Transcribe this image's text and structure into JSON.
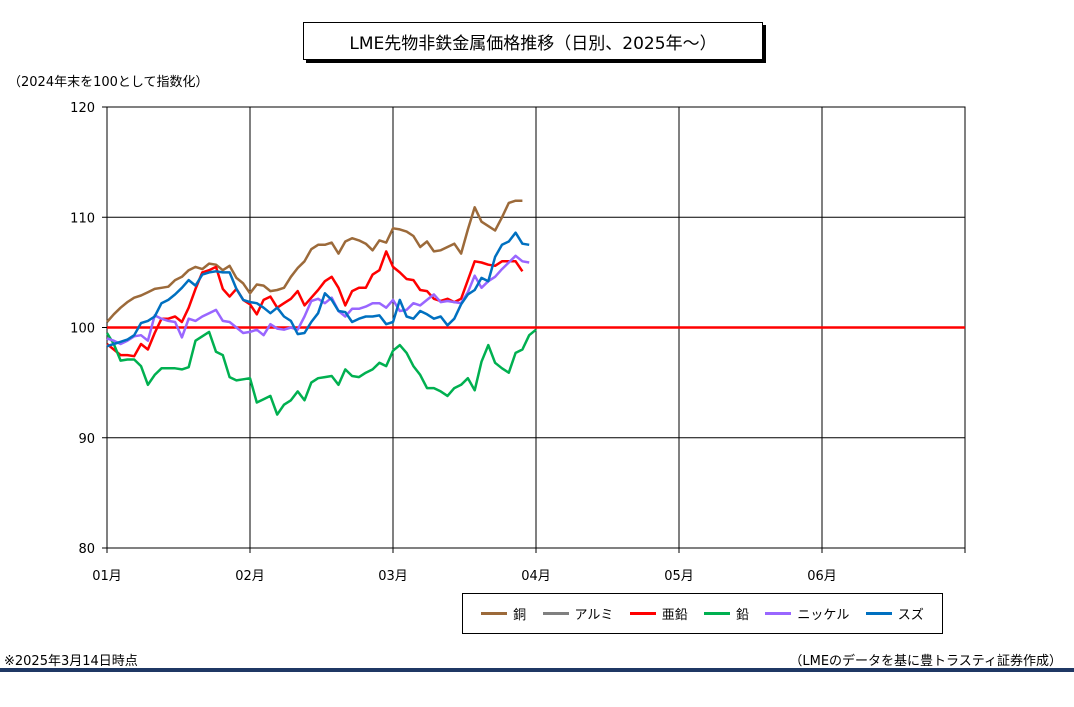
{
  "chart_data": {
    "type": "line",
    "title": "LME先物非鉄金属価格推移（日別、2025年～）",
    "ylabel": "（2024年末を100として指数化）",
    "xlabel": "",
    "ylim": [
      80,
      120
    ],
    "yticks": [
      80,
      90,
      100,
      110,
      120
    ],
    "x_categories": [
      "01月",
      "02月",
      "03月",
      "04月",
      "05月",
      "06月"
    ],
    "grid": true,
    "legend_position": "bottom",
    "reference_line": {
      "value": 100,
      "color": "#ff0000"
    },
    "series": [
      {
        "name": "銅",
        "color": "#9c6a3a",
        "points": [
          [
            0,
            100.5
          ],
          [
            1,
            101.2
          ],
          [
            2,
            101.8
          ],
          [
            3,
            102.3
          ],
          [
            4,
            102.7
          ],
          [
            5,
            102.9
          ],
          [
            6,
            103.2
          ],
          [
            7,
            103.5
          ],
          [
            8,
            103.6
          ],
          [
            9,
            103.7
          ],
          [
            10,
            104.3
          ],
          [
            11,
            104.6
          ],
          [
            12,
            105.2
          ],
          [
            13,
            105.5
          ],
          [
            14,
            105.3
          ],
          [
            15,
            105.8
          ],
          [
            16,
            105.7
          ],
          [
            17,
            105.2
          ],
          [
            18,
            105.6
          ],
          [
            19,
            104.5
          ],
          [
            20,
            104.0
          ],
          [
            21,
            103.1
          ],
          [
            22,
            103.9
          ],
          [
            23,
            103.8
          ],
          [
            24,
            103.3
          ],
          [
            25,
            103.4
          ],
          [
            26,
            103.6
          ],
          [
            27,
            104.6
          ],
          [
            28,
            105.4
          ],
          [
            29,
            106.0
          ],
          [
            30,
            107.1
          ],
          [
            31,
            107.5
          ],
          [
            32,
            107.5
          ],
          [
            33,
            107.7
          ],
          [
            34,
            106.7
          ],
          [
            35,
            107.8
          ],
          [
            36,
            108.1
          ],
          [
            37,
            107.9
          ],
          [
            38,
            107.6
          ],
          [
            39,
            107.0
          ],
          [
            40,
            107.9
          ],
          [
            41,
            107.7
          ],
          [
            42,
            109.0
          ],
          [
            43,
            108.9
          ],
          [
            44,
            108.7
          ],
          [
            45,
            108.3
          ],
          [
            46,
            107.3
          ],
          [
            47,
            107.8
          ],
          [
            48,
            106.9
          ],
          [
            49,
            107.0
          ],
          [
            50,
            107.3
          ],
          [
            51,
            107.6
          ],
          [
            52,
            106.7
          ],
          [
            53,
            108.9
          ],
          [
            54,
            110.9
          ],
          [
            55,
            109.6
          ],
          [
            56,
            109.2
          ],
          [
            57,
            108.8
          ],
          [
            58,
            110.0
          ],
          [
            59,
            111.3
          ],
          [
            60,
            111.5
          ],
          [
            61,
            111.5
          ]
        ]
      },
      {
        "name": "アルミ",
        "color": "#808080",
        "points": []
      },
      {
        "name": "亜鉛",
        "color": "#ff0000",
        "points": [
          [
            0,
            98.5
          ],
          [
            1,
            98.0
          ],
          [
            2,
            97.5
          ],
          [
            3,
            97.5
          ],
          [
            4,
            97.4
          ],
          [
            5,
            98.5
          ],
          [
            6,
            98.0
          ],
          [
            7,
            99.5
          ],
          [
            8,
            100.8
          ],
          [
            9,
            100.8
          ],
          [
            10,
            101.0
          ],
          [
            11,
            100.5
          ],
          [
            12,
            101.8
          ],
          [
            13,
            103.5
          ],
          [
            14,
            105.0
          ],
          [
            15,
            105.2
          ],
          [
            16,
            105.5
          ],
          [
            17,
            103.5
          ],
          [
            18,
            102.8
          ],
          [
            19,
            103.5
          ],
          [
            20,
            102.5
          ],
          [
            21,
            102.1
          ],
          [
            22,
            101.2
          ],
          [
            23,
            102.5
          ],
          [
            24,
            102.8
          ],
          [
            25,
            101.8
          ],
          [
            26,
            102.2
          ],
          [
            27,
            102.6
          ],
          [
            28,
            103.3
          ],
          [
            29,
            102.0
          ],
          [
            30,
            102.7
          ],
          [
            31,
            103.4
          ],
          [
            32,
            104.2
          ],
          [
            33,
            104.6
          ],
          [
            34,
            103.6
          ],
          [
            35,
            102.0
          ],
          [
            36,
            103.3
          ],
          [
            37,
            103.6
          ],
          [
            38,
            103.6
          ],
          [
            39,
            104.8
          ],
          [
            40,
            105.2
          ],
          [
            41,
            106.9
          ],
          [
            42,
            105.5
          ],
          [
            43,
            105.0
          ],
          [
            44,
            104.4
          ],
          [
            45,
            104.3
          ],
          [
            46,
            103.4
          ],
          [
            47,
            103.3
          ],
          [
            48,
            102.6
          ],
          [
            49,
            102.4
          ],
          [
            50,
            102.6
          ],
          [
            51,
            102.3
          ],
          [
            52,
            102.6
          ],
          [
            53,
            104.3
          ],
          [
            54,
            106.0
          ],
          [
            55,
            105.9
          ],
          [
            56,
            105.7
          ],
          [
            57,
            105.6
          ],
          [
            58,
            106.0
          ],
          [
            59,
            106.0
          ],
          [
            60,
            106.0
          ],
          [
            61,
            105.1
          ]
        ]
      },
      {
        "name": "鉛",
        "color": "#00b050",
        "points": [
          [
            0,
            99.5
          ],
          [
            1,
            98.5
          ],
          [
            2,
            97.0
          ],
          [
            3,
            97.1
          ],
          [
            4,
            97.1
          ],
          [
            5,
            96.5
          ],
          [
            6,
            94.8
          ],
          [
            7,
            95.7
          ],
          [
            8,
            96.3
          ],
          [
            9,
            96.3
          ],
          [
            10,
            96.3
          ],
          [
            11,
            96.2
          ],
          [
            12,
            96.4
          ],
          [
            13,
            98.8
          ],
          [
            14,
            99.2
          ],
          [
            15,
            99.6
          ],
          [
            16,
            97.8
          ],
          [
            17,
            97.5
          ],
          [
            18,
            95.5
          ],
          [
            19,
            95.2
          ],
          [
            20,
            95.3
          ],
          [
            21,
            95.4
          ],
          [
            22,
            93.2
          ],
          [
            23,
            93.5
          ],
          [
            24,
            93.8
          ],
          [
            25,
            92.1
          ],
          [
            26,
            93.0
          ],
          [
            27,
            93.4
          ],
          [
            28,
            94.2
          ],
          [
            29,
            93.4
          ],
          [
            30,
            95.0
          ],
          [
            31,
            95.4
          ],
          [
            32,
            95.5
          ],
          [
            33,
            95.6
          ],
          [
            34,
            94.8
          ],
          [
            35,
            96.2
          ],
          [
            36,
            95.6
          ],
          [
            37,
            95.5
          ],
          [
            38,
            95.9
          ],
          [
            39,
            96.2
          ],
          [
            40,
            96.8
          ],
          [
            41,
            96.5
          ],
          [
            42,
            97.9
          ],
          [
            43,
            98.4
          ],
          [
            44,
            97.7
          ],
          [
            45,
            96.5
          ],
          [
            46,
            95.7
          ],
          [
            47,
            94.5
          ],
          [
            48,
            94.5
          ],
          [
            49,
            94.2
          ],
          [
            50,
            93.8
          ],
          [
            51,
            94.5
          ],
          [
            52,
            94.8
          ],
          [
            53,
            95.4
          ],
          [
            54,
            94.3
          ],
          [
            55,
            96.9
          ],
          [
            56,
            98.4
          ],
          [
            57,
            96.8
          ],
          [
            58,
            96.3
          ],
          [
            59,
            95.9
          ],
          [
            60,
            97.7
          ],
          [
            61,
            98.0
          ],
          [
            62,
            99.3
          ],
          [
            63,
            99.8
          ]
        ]
      },
      {
        "name": "ニッケル",
        "color": "#9966ff",
        "points": [
          [
            0,
            99.0
          ],
          [
            1,
            98.8
          ],
          [
            2,
            98.5
          ],
          [
            3,
            98.8
          ],
          [
            4,
            99.2
          ],
          [
            5,
            99.3
          ],
          [
            6,
            98.8
          ],
          [
            7,
            101.1
          ],
          [
            8,
            100.8
          ],
          [
            9,
            100.6
          ],
          [
            10,
            100.5
          ],
          [
            11,
            99.1
          ],
          [
            12,
            100.8
          ],
          [
            13,
            100.6
          ],
          [
            14,
            101.0
          ],
          [
            15,
            101.3
          ],
          [
            16,
            101.6
          ],
          [
            17,
            100.6
          ],
          [
            18,
            100.5
          ],
          [
            19,
            100.0
          ],
          [
            20,
            99.5
          ],
          [
            21,
            99.6
          ],
          [
            22,
            99.8
          ],
          [
            23,
            99.3
          ],
          [
            24,
            100.3
          ],
          [
            25,
            99.9
          ],
          [
            26,
            99.8
          ],
          [
            27,
            100.0
          ],
          [
            28,
            99.8
          ],
          [
            29,
            101.0
          ],
          [
            30,
            102.4
          ],
          [
            31,
            102.6
          ],
          [
            32,
            102.2
          ],
          [
            33,
            102.7
          ],
          [
            34,
            101.5
          ],
          [
            35,
            101.0
          ],
          [
            36,
            101.7
          ],
          [
            37,
            101.7
          ],
          [
            38,
            101.9
          ],
          [
            39,
            102.2
          ],
          [
            40,
            102.2
          ],
          [
            41,
            101.8
          ],
          [
            42,
            102.5
          ],
          [
            43,
            101.5
          ],
          [
            44,
            101.6
          ],
          [
            45,
            102.2
          ],
          [
            46,
            102.0
          ],
          [
            47,
            102.5
          ],
          [
            48,
            103.0
          ],
          [
            49,
            102.3
          ],
          [
            50,
            102.4
          ],
          [
            51,
            102.3
          ],
          [
            52,
            102.2
          ],
          [
            53,
            103.2
          ],
          [
            54,
            104.7
          ],
          [
            55,
            103.6
          ],
          [
            56,
            104.2
          ],
          [
            57,
            104.6
          ],
          [
            58,
            105.3
          ],
          [
            59,
            105.9
          ],
          [
            60,
            106.5
          ],
          [
            61,
            106.0
          ],
          [
            62,
            105.9
          ]
        ]
      },
      {
        "name": "スズ",
        "color": "#0070c0",
        "points": [
          [
            0,
            98.3
          ],
          [
            1,
            98.5
          ],
          [
            2,
            98.7
          ],
          [
            3,
            98.9
          ],
          [
            4,
            99.3
          ],
          [
            5,
            100.4
          ],
          [
            6,
            100.6
          ],
          [
            7,
            101.0
          ],
          [
            8,
            102.2
          ],
          [
            9,
            102.5
          ],
          [
            10,
            103.0
          ],
          [
            11,
            103.6
          ],
          [
            12,
            104.3
          ],
          [
            13,
            103.8
          ],
          [
            14,
            104.8
          ],
          [
            15,
            105.0
          ],
          [
            16,
            105.1
          ],
          [
            17,
            105.0
          ],
          [
            18,
            105.0
          ],
          [
            19,
            103.5
          ],
          [
            20,
            102.5
          ],
          [
            21,
            102.3
          ],
          [
            22,
            102.2
          ],
          [
            23,
            101.8
          ],
          [
            24,
            101.3
          ],
          [
            25,
            101.8
          ],
          [
            26,
            101.0
          ],
          [
            27,
            100.6
          ],
          [
            28,
            99.4
          ],
          [
            29,
            99.5
          ],
          [
            30,
            100.5
          ],
          [
            31,
            101.3
          ],
          [
            32,
            103.1
          ],
          [
            33,
            102.5
          ],
          [
            34,
            101.5
          ],
          [
            35,
            101.4
          ],
          [
            36,
            100.5
          ],
          [
            37,
            100.8
          ],
          [
            38,
            101.0
          ],
          [
            39,
            101.0
          ],
          [
            40,
            101.1
          ],
          [
            41,
            100.3
          ],
          [
            42,
            100.5
          ],
          [
            43,
            102.5
          ],
          [
            44,
            101.0
          ],
          [
            45,
            100.8
          ],
          [
            46,
            101.5
          ],
          [
            47,
            101.2
          ],
          [
            48,
            100.8
          ],
          [
            49,
            101.0
          ],
          [
            50,
            100.2
          ],
          [
            51,
            100.8
          ],
          [
            52,
            102.1
          ],
          [
            53,
            103.0
          ],
          [
            54,
            103.4
          ],
          [
            55,
            104.5
          ],
          [
            56,
            104.2
          ],
          [
            57,
            106.4
          ],
          [
            58,
            107.5
          ],
          [
            59,
            107.8
          ],
          [
            60,
            108.6
          ],
          [
            61,
            107.6
          ],
          [
            62,
            107.5
          ]
        ]
      }
    ],
    "series_x_note_months": [
      0,
      1,
      2,
      3,
      4,
      5,
      6
    ]
  },
  "footnote": "※2025年3月14日時点",
  "source": "（LMEのデータを基に豊トラスティ証券作成）"
}
